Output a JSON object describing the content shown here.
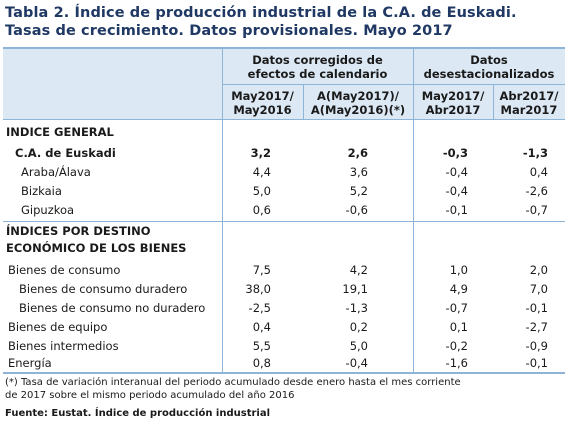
{
  "title": {
    "line1": "Tabla 2. Índice de producción industrial de la C.A. de Euskadi.",
    "line2": "Tasas de crecimiento. Datos provisionales. Mayo 2017"
  },
  "header": {
    "group1": [
      "Datos corregidos de",
      "efectos de calendario"
    ],
    "group2": [
      "Datos",
      "desestacionalizados"
    ],
    "columns": [
      [
        "May2017/",
        "May2016"
      ],
      [
        "A(May2017)/",
        "A(May2016)(*)"
      ],
      [
        "May2017/",
        "Abr2017"
      ],
      [
        "Abr2017/",
        "Mar2017"
      ]
    ]
  },
  "sections": {
    "general": "INDICE GENERAL",
    "destino": [
      "ÍNDICES POR DESTINO",
      "ECONÓMICO DE LOS BIENES"
    ]
  },
  "rows_general": [
    {
      "label": "C.A. de Euskadi",
      "values": [
        "3,2",
        "2,6",
        "-0,3",
        "-1,3"
      ]
    },
    {
      "label": "Araba/Álava",
      "values": [
        "4,4",
        "3,6",
        "-0,4",
        "0,4"
      ]
    },
    {
      "label": "Bizkaia",
      "values": [
        "5,0",
        "5,2",
        "-0,4",
        "-2,6"
      ]
    },
    {
      "label": "Gipuzkoa",
      "values": [
        "0,6",
        "-0,6",
        "-0,1",
        "-0,7"
      ]
    }
  ],
  "rows_destino": [
    {
      "label": "Bienes de consumo",
      "values": [
        "7,5",
        "4,2",
        "1,0",
        "2,0"
      ]
    },
    {
      "label": "Bienes de consumo duradero",
      "values": [
        "38,0",
        "19,1",
        "4,9",
        "7,0"
      ]
    },
    {
      "label": "Bienes de consumo no duradero",
      "values": [
        "-2,5",
        "-1,3",
        "-0,7",
        "-0,1"
      ]
    },
    {
      "label": "Bienes de equipo",
      "values": [
        "0,4",
        "0,2",
        "0,1",
        "-2,7"
      ]
    },
    {
      "label": "Bienes intermedios",
      "values": [
        "5,5",
        "5,0",
        "-0,2",
        "-0,9"
      ]
    },
    {
      "label": "Energía",
      "values": [
        "0,8",
        "-0,4",
        "-1,6",
        "-0,1"
      ]
    }
  ],
  "footnote": [
    "(*) Tasa de variación interanual del periodo acumulado desde enero hasta el mes corriente",
    "de 2017 sobre el mismo periodo acumulado del año 2016"
  ],
  "source": "Fuente: Eustat. Índice de producción industrial"
}
